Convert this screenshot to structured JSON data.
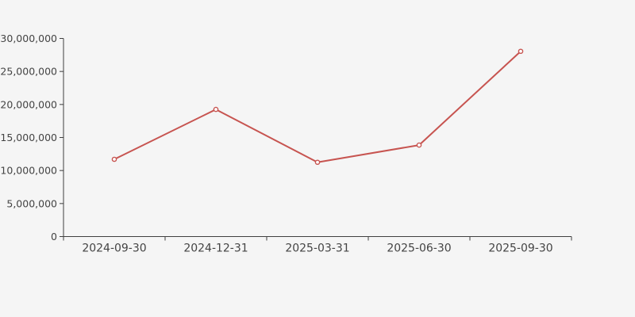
{
  "page": {
    "background_color": "#f5f5f5"
  },
  "chart_data": {
    "type": "line",
    "title": "",
    "xlabel": "",
    "ylabel": "",
    "categories": [
      "2024-09-30",
      "2024-12-31",
      "2025-03-31",
      "2025-06-30",
      "2025-09-30"
    ],
    "values": [
      11700000,
      19250000,
      11250000,
      13850000,
      28050000
    ],
    "series": [
      {
        "name": "value",
        "values": [
          11700000,
          19250000,
          11250000,
          13850000,
          28050000
        ]
      }
    ],
    "ylim": [
      0,
      30000000
    ],
    "y_tick_interval": 5000000,
    "y_ticks": [
      0,
      5000000,
      10000000,
      15000000,
      20000000,
      25000000,
      30000000
    ],
    "y_tick_labels": [
      "0",
      "5,000,000",
      "10,000,000",
      "15,000,000",
      "20,000,000",
      "25,000,000",
      "30,000,000"
    ],
    "grid": false,
    "legend_position": "none",
    "marker_style": "open-circle",
    "colors": {
      "line": "#c75450",
      "marker_fill": "#ffffff",
      "axis": "#3f3f3f",
      "tick_label": "#444444",
      "background": "#f5f5f5"
    }
  }
}
